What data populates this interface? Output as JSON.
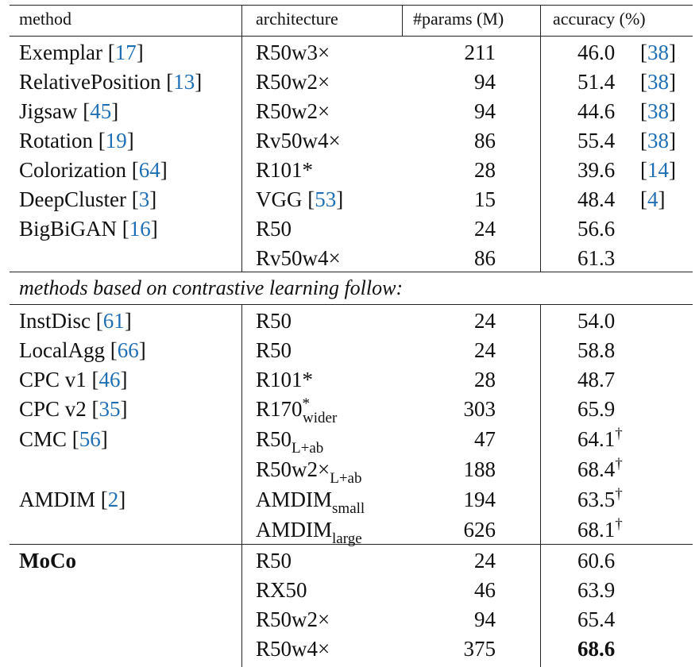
{
  "headers": {
    "method": "method",
    "architecture": "architecture",
    "params": "#params (M)",
    "accuracy": "accuracy (%)"
  },
  "section1_rows": [
    {
      "method": "Exemplar",
      "method_ref": "17",
      "arch": "R50w3×",
      "params": "211",
      "acc": "46.0",
      "acc_ref": "38"
    },
    {
      "method": "RelativePosition",
      "method_ref": "13",
      "arch": "R50w2×",
      "params": "94",
      "acc": "51.4",
      "acc_ref": "38"
    },
    {
      "method": "Jigsaw",
      "method_ref": "45",
      "arch": "R50w2×",
      "params": "94",
      "acc": "44.6",
      "acc_ref": "38"
    },
    {
      "method": "Rotation",
      "method_ref": "19",
      "arch": "Rv50w4×",
      "params": "86",
      "acc": "55.4",
      "acc_ref": "38"
    },
    {
      "method": "Colorization",
      "method_ref": "64",
      "arch": "R101*",
      "params": "28",
      "acc": "39.6",
      "acc_ref": "14"
    },
    {
      "method": "DeepCluster",
      "method_ref": "3",
      "arch": "VGG",
      "arch_ref": "53",
      "params": "15",
      "acc": "48.4",
      "acc_ref": "4"
    },
    {
      "method": "BigBiGAN",
      "method_ref": "16",
      "arch": "R50",
      "params": "24",
      "acc": "56.6"
    },
    {
      "arch": "Rv50w4×",
      "params": "86",
      "acc": "61.3"
    }
  ],
  "section_caption": "methods based on contrastive learning follow:",
  "section2_rows": [
    {
      "method": "InstDisc",
      "method_ref": "61",
      "arch": "R50",
      "params": "24",
      "acc": "54.0"
    },
    {
      "method": "LocalAgg",
      "method_ref": "66",
      "arch": "R50",
      "params": "24",
      "acc": "58.8"
    },
    {
      "method": "CPC v1",
      "method_ref": "46",
      "arch": "R101*",
      "params": "28",
      "acc": "48.7"
    },
    {
      "method": "CPC v2",
      "method_ref": "35",
      "arch": "R170",
      "arch_sup": "*",
      "arch_sub": "wider",
      "params": "303",
      "acc": "65.9"
    },
    {
      "method": "CMC",
      "method_ref": "56",
      "arch": "R50",
      "arch_sub": "L+ab",
      "params": "47",
      "acc": "64.1",
      "acc_mark": "†"
    },
    {
      "arch": "R50w2×",
      "arch_sub": "L+ab",
      "params": "188",
      "acc": "68.4",
      "acc_mark": "†"
    },
    {
      "method": "AMDIM",
      "method_ref": "2",
      "arch": "AMDIM",
      "arch_sub": "small",
      "params": "194",
      "acc": "63.5",
      "acc_mark": "†"
    },
    {
      "arch": "AMDIM",
      "arch_sub": "large",
      "params": "626",
      "acc": "68.1",
      "acc_mark": "†"
    }
  ],
  "moco_rows": [
    {
      "method": "MoCo",
      "arch": "R50",
      "params": "24",
      "acc": "60.6"
    },
    {
      "arch": "RX50",
      "params": "46",
      "acc": "63.9"
    },
    {
      "arch": "R50w2×",
      "params": "94",
      "acc": "65.4"
    },
    {
      "arch": "R50w4×",
      "params": "375",
      "acc": "68.6"
    }
  ]
}
